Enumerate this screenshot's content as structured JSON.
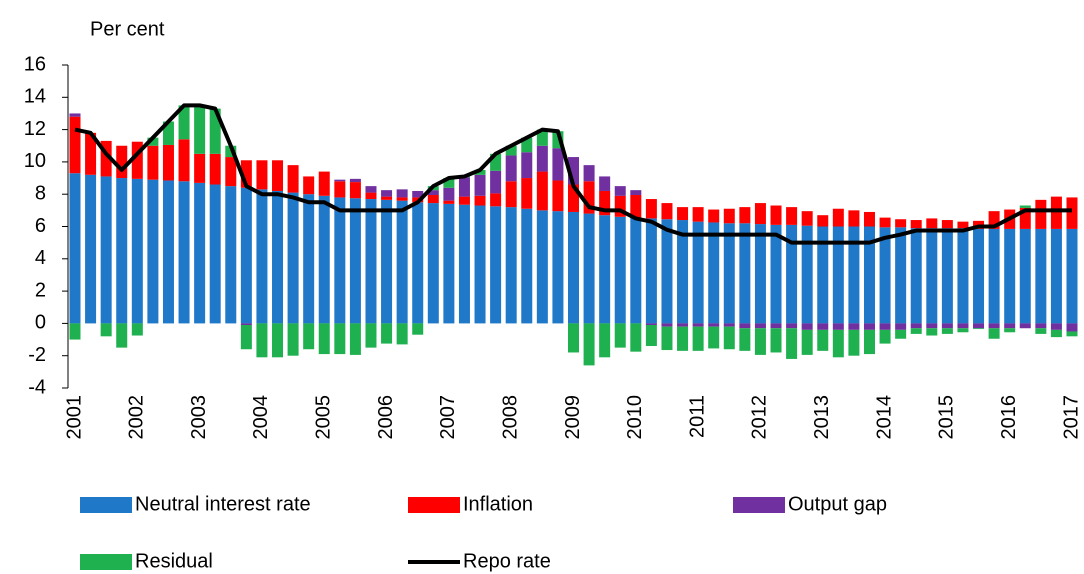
{
  "chart_data": {
    "type": "bar",
    "stacked": true,
    "y_label": "Per cent",
    "categories": [
      "2001",
      null,
      null,
      null,
      "2002",
      null,
      null,
      null,
      "2003",
      null,
      null,
      null,
      "2004",
      null,
      null,
      null,
      "2005",
      null,
      null,
      null,
      "2006",
      null,
      null,
      null,
      "2007",
      null,
      null,
      null,
      "2008",
      null,
      null,
      null,
      "2009",
      null,
      null,
      null,
      "2010",
      null,
      null,
      null,
      "2011",
      null,
      null,
      null,
      "2012",
      null,
      null,
      null,
      "2013",
      null,
      null,
      null,
      "2014",
      null,
      null,
      null,
      "2015",
      null,
      null,
      null,
      "2016",
      null,
      null,
      null,
      "2017"
    ],
    "series": [
      {
        "name": "Neutral interest rate",
        "type": "bar",
        "color": "#1f78c8",
        "values": [
          9.3,
          9.2,
          9.1,
          9.0,
          8.95,
          8.9,
          8.85,
          8.8,
          8.7,
          8.6,
          8.5,
          8.4,
          8.3,
          8.2,
          8.1,
          8.0,
          7.9,
          7.8,
          7.75,
          7.7,
          7.65,
          7.6,
          7.5,
          7.45,
          7.4,
          7.35,
          7.3,
          7.25,
          7.2,
          7.1,
          7.0,
          6.95,
          6.9,
          6.8,
          6.7,
          6.6,
          6.55,
          6.5,
          6.45,
          6.4,
          6.3,
          6.25,
          6.2,
          6.2,
          6.15,
          6.1,
          6.1,
          6.05,
          6.0,
          6.0,
          6.0,
          6.0,
          5.95,
          5.95,
          5.9,
          5.9,
          5.9,
          5.9,
          5.85,
          5.85,
          5.85,
          5.85,
          5.85,
          5.85,
          5.85
        ]
      },
      {
        "name": "Inflation",
        "type": "bar",
        "color": "#ff0000",
        "values": [
          3.5,
          2.6,
          2.2,
          2.0,
          2.3,
          2.1,
          2.2,
          2.6,
          1.8,
          1.9,
          1.8,
          1.7,
          1.8,
          1.9,
          1.7,
          1.1,
          1.5,
          1.0,
          1.0,
          0.4,
          0.2,
          0.2,
          0.3,
          0.5,
          0.2,
          0.5,
          0.6,
          0.8,
          1.6,
          1.9,
          2.4,
          1.9,
          1.7,
          2.0,
          1.5,
          1.3,
          1.4,
          1.2,
          1.0,
          0.8,
          0.9,
          0.8,
          0.9,
          1.0,
          1.3,
          1.2,
          1.1,
          0.9,
          0.7,
          1.1,
          1.0,
          0.9,
          0.6,
          0.5,
          0.5,
          0.6,
          0.5,
          0.4,
          0.5,
          1.1,
          1.2,
          1.3,
          1.8,
          2.0,
          1.95
        ]
      },
      {
        "name": "Output gap",
        "type": "bar",
        "color": "#7030a0",
        "values": [
          0.2,
          0,
          0,
          0,
          0,
          0,
          0,
          0,
          0,
          0,
          0,
          -0.1,
          0,
          0,
          0,
          0,
          0,
          0.1,
          0.2,
          0.4,
          0.4,
          0.5,
          0.4,
          0.3,
          0.8,
          1.2,
          1.3,
          1.4,
          1.6,
          1.6,
          1.6,
          2.0,
          1.7,
          1.0,
          0.9,
          0.6,
          0.3,
          -0.1,
          -0.2,
          -0.2,
          -0.2,
          -0.2,
          -0.2,
          -0.3,
          -0.3,
          -0.3,
          -0.3,
          -0.4,
          -0.4,
          -0.4,
          -0.4,
          -0.4,
          -0.4,
          -0.4,
          -0.3,
          -0.3,
          -0.3,
          -0.3,
          -0.3,
          -0.3,
          -0.3,
          -0.3,
          -0.3,
          -0.4,
          -0.5
        ]
      },
      {
        "name": "Residual",
        "type": "bar",
        "color": "#1fb050",
        "values": [
          -1.0,
          0,
          -0.8,
          -1.5,
          -0.75,
          0.5,
          1.45,
          2.1,
          3.0,
          2.8,
          0.7,
          -1.5,
          -2.1,
          -2.1,
          -2.0,
          -1.6,
          -1.9,
          -1.9,
          -1.95,
          -1.5,
          -1.25,
          -1.3,
          -0.7,
          0.25,
          0.6,
          0.05,
          0.3,
          1.05,
          0.6,
          0.9,
          1.0,
          1.05,
          -1.8,
          -2.6,
          -2.1,
          -1.5,
          -1.75,
          -1.3,
          -1.45,
          -1.5,
          -1.5,
          -1.35,
          -1.4,
          -1.4,
          -1.65,
          -1.5,
          -1.9,
          -1.55,
          -1.3,
          -1.7,
          -1.6,
          -1.5,
          -0.85,
          -0.55,
          -0.35,
          -0.45,
          -0.35,
          -0.25,
          -0.05,
          -0.65,
          -0.25,
          0.15,
          -0.35,
          -0.45,
          -0.3
        ]
      },
      {
        "name": "Repo rate",
        "type": "line",
        "color": "#000000",
        "values": [
          12,
          11.8,
          10.5,
          9.5,
          10.5,
          11.5,
          12.5,
          13.5,
          13.5,
          13.3,
          11.0,
          8.5,
          8.0,
          8.0,
          7.8,
          7.5,
          7.5,
          7.0,
          7.0,
          7.0,
          7.0,
          7.0,
          7.5,
          8.5,
          9.0,
          9.1,
          9.5,
          10.5,
          11.0,
          11.5,
          12.0,
          11.9,
          8.5,
          7.2,
          7.0,
          7.0,
          6.5,
          6.3,
          5.8,
          5.5,
          5.5,
          5.5,
          5.5,
          5.5,
          5.5,
          5.5,
          5.0,
          5.0,
          5.0,
          5.0,
          5.0,
          5.0,
          5.3,
          5.5,
          5.75,
          5.75,
          5.75,
          5.75,
          6.0,
          6.0,
          6.5,
          7.0,
          7.0,
          7.0,
          7.0
        ]
      }
    ],
    "ylim": [
      -4,
      16
    ],
    "yticks": [
      -4,
      -2,
      0,
      2,
      4,
      6,
      8,
      10,
      12,
      14,
      16
    ]
  }
}
